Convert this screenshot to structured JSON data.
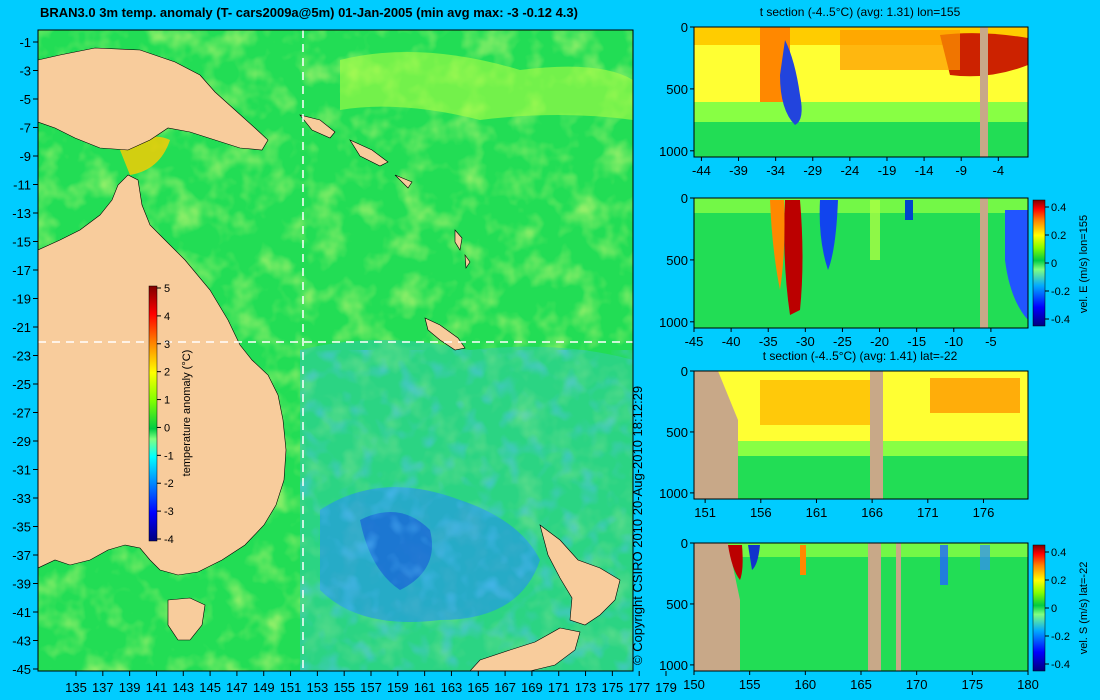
{
  "colors": {
    "page_background": "#00ccff",
    "land": "#f8cc9c",
    "section_land": "#c8a888",
    "palette": [
      "#00007f",
      "#0000ff",
      "#0080ff",
      "#00ffff",
      "#80ff80",
      "#00cc44",
      "#ffff00",
      "#ff8000",
      "#ff0000",
      "#7f0000"
    ]
  },
  "copyright": "© Copyright CSIRO 2010   20-Aug-2010 18:12:29",
  "chart_data": [
    {
      "type": "heatmap",
      "title": "BRAN3.0 3m temp. anomaly (T- cars2009a@5m) 01-Jan-2005 (min avg max: -3 -0.12 4.3)",
      "x_ticks": [
        "135",
        "137",
        "139",
        "141",
        "143",
        "145",
        "147",
        "149",
        "151",
        "153",
        "155",
        "157",
        "159",
        "161",
        "163",
        "165",
        "167",
        "169",
        "171",
        "173",
        "175",
        "177",
        "179"
      ],
      "y_ticks": [
        "-1",
        "-3",
        "-5",
        "-7",
        "-9",
        "-11",
        "-13",
        "-15",
        "-17",
        "-19",
        "-21",
        "-23",
        "-25",
        "-27",
        "-29",
        "-31",
        "-33",
        "-35",
        "-37",
        "-39",
        "-41",
        "-43",
        "-45"
      ],
      "xlim": [
        135,
        180
      ],
      "ylim": [
        -45,
        0
      ],
      "section_lines": {
        "lon": 155,
        "lat": -22
      },
      "colorbar": {
        "label": "temperature anomaly (°C)",
        "ticks": [
          "5",
          "4",
          "3",
          "2",
          "1",
          "0",
          "-1",
          "-2",
          "-3",
          "-4"
        ],
        "range": [
          -4,
          5
        ]
      }
    },
    {
      "type": "heatmap",
      "title": "t section (-4..5°C) (avg: 1.31) lon=155",
      "x_ticks": [
        "-44",
        "-39",
        "-34",
        "-29",
        "-24",
        "-19",
        "-14",
        "-9",
        "-4"
      ],
      "y_ticks": [
        "0",
        "500",
        "1000"
      ],
      "xlim": [
        -45,
        0
      ],
      "ylim": [
        0,
        1050
      ],
      "avg": 1.31
    },
    {
      "type": "heatmap",
      "title": "",
      "x_ticks": [
        "-45",
        "-40",
        "-35",
        "-30",
        "-25",
        "-20",
        "-15",
        "-10",
        "-5"
      ],
      "y_ticks": [
        "0",
        "500",
        "1000"
      ],
      "xlim": [
        -45,
        0
      ],
      "ylim": [
        0,
        1050
      ],
      "colorbar": {
        "label": "vel. E (m/s) lon=155",
        "ticks": [
          "0.4",
          "0.2",
          "0",
          "-0.2",
          "-0.4"
        ],
        "range": [
          -0.45,
          0.45
        ]
      }
    },
    {
      "type": "heatmap",
      "title": "t section (-4..5°C) (avg: 1.41) lat=-22",
      "x_ticks": [
        "151",
        "156",
        "161",
        "166",
        "171",
        "176"
      ],
      "y_ticks": [
        "0",
        "500",
        "1000"
      ],
      "xlim": [
        150,
        180
      ],
      "ylim": [
        0,
        1050
      ],
      "avg": 1.41
    },
    {
      "type": "heatmap",
      "title": "",
      "x_ticks": [
        "150",
        "155",
        "160",
        "165",
        "170",
        "175",
        "180"
      ],
      "y_ticks": [
        "0",
        "500",
        "1000"
      ],
      "xlim": [
        150,
        180
      ],
      "ylim": [
        0,
        1050
      ],
      "colorbar": {
        "label": "vel. S (m/s) lat=-22",
        "ticks": [
          "0.4",
          "0.2",
          "0",
          "-0.2",
          "-0.4"
        ],
        "range": [
          -0.45,
          0.45
        ]
      }
    }
  ]
}
